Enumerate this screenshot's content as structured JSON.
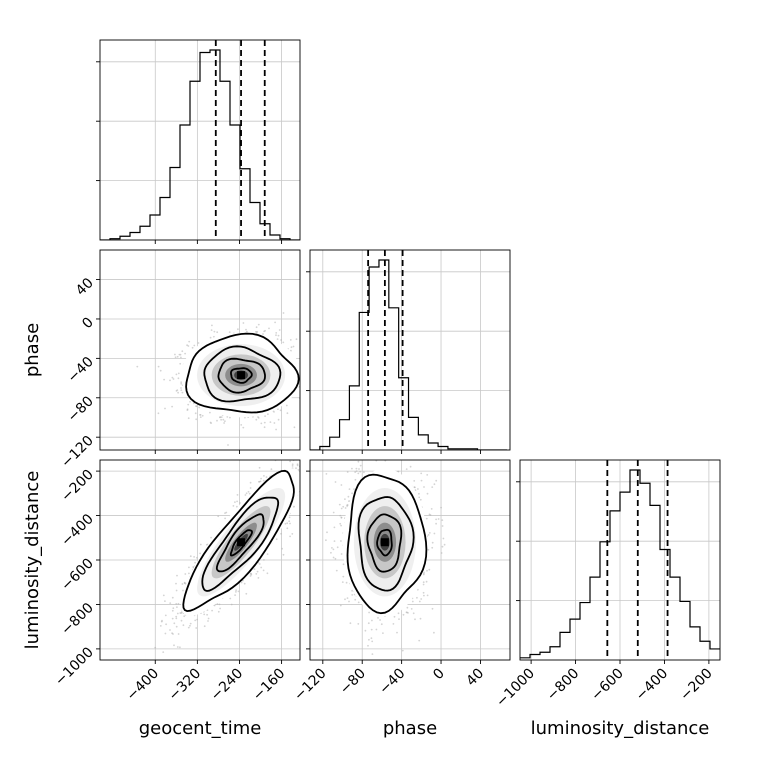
{
  "chart_data": {
    "type": "corner",
    "grid": true,
    "parameters": [
      {
        "name": "geocent_time",
        "label": "geocent_time",
        "range": [
          -505,
          -125
        ],
        "ticks": [
          -400,
          -320,
          -240,
          -160
        ],
        "tick_labels": [
          "−400",
          "−320",
          "−240",
          "−160"
        ],
        "quantiles": [
          -285,
          -237,
          -192
        ],
        "histogram": {
          "bin_edges": [
            -505,
            -486,
            -467,
            -448,
            -429,
            -410,
            -391,
            -372,
            -353,
            -334,
            -315,
            -296,
            -277,
            -258,
            -239,
            -220,
            -201,
            -182,
            -163,
            -144,
            -125
          ],
          "counts": [
            0,
            1,
            3,
            6,
            11,
            20,
            34,
            58,
            92,
            127,
            150,
            152,
            127,
            92,
            57,
            30,
            13,
            4,
            1,
            0
          ]
        }
      },
      {
        "name": "phase",
        "label": "phase",
        "range": [
          -133,
          70
        ],
        "ticks": [
          -120,
          -80,
          -40,
          0,
          40
        ],
        "tick_labels": [
          "−120",
          "−80",
          "−40",
          "0",
          "40"
        ],
        "quantiles": [
          -74,
          -57,
          -39
        ],
        "histogram": {
          "bin_edges": [
            -133,
            -123,
            -113,
            -103,
            -93,
            -83,
            -73,
            -63,
            -53,
            -43,
            -33,
            -23,
            -13,
            -3,
            7,
            17,
            27,
            37,
            47,
            57,
            67
          ],
          "counts": [
            0,
            3,
            11,
            26,
            55,
            118,
            157,
            163,
            122,
            62,
            28,
            13,
            6,
            3,
            1,
            1,
            1,
            0,
            0,
            0
          ]
        }
      },
      {
        "name": "luminosity_distance",
        "label": "luminosity_distance",
        "range": [
          -1050,
          -150
        ],
        "ticks": [
          -1000,
          -800,
          -600,
          -400,
          -200
        ],
        "tick_labels": [
          "−1000",
          "−800",
          "−600",
          "−400",
          "−200"
        ],
        "quantiles": [
          -657,
          -520,
          -386
        ],
        "histogram": {
          "bin_edges": [
            -1050,
            -1005,
            -960,
            -915,
            -870,
            -825,
            -780,
            -735,
            -690,
            -645,
            -600,
            -555,
            -510,
            -465,
            -420,
            -375,
            -330,
            -285,
            -240,
            -195,
            -150
          ],
          "counts": [
            2,
            5,
            7,
            12,
            25,
            37,
            52,
            75,
            107,
            135,
            152,
            172,
            160,
            140,
            100,
            75,
            53,
            30,
            17,
            10
          ]
        }
      }
    ],
    "correlations": {
      "geocent_time__phase": 0.0,
      "geocent_time__luminosity_distance": 0.85,
      "phase__luminosity_distance": 0.0
    },
    "contour_levels": [
      "0.5",
      "1.0",
      "1.5",
      "2.0"
    ],
    "colors": {
      "line": "#000000",
      "grid": "#c8c8c8",
      "scatter": "#b0b0b0",
      "background": "#ffffff"
    }
  }
}
